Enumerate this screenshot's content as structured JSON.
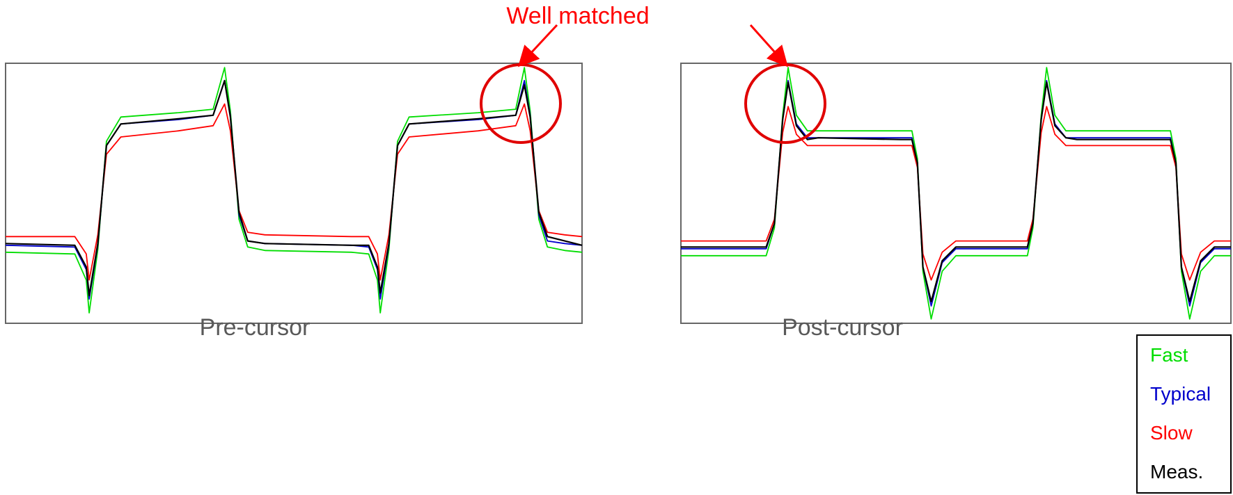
{
  "annotation": {
    "text": "Well matched",
    "color": "#ff0000"
  },
  "captions": {
    "left": "Pre-cursor",
    "right": "Post-cursor"
  },
  "legend": [
    {
      "label": "Fast",
      "color": "#00dd00"
    },
    {
      "label": "Typical",
      "color": "#0000cc"
    },
    {
      "label": "Slow",
      "color": "#ff0000"
    },
    {
      "label": "Meas.",
      "color": "#000000"
    }
  ],
  "chart_data": [
    {
      "type": "line",
      "title": "Pre-cursor",
      "x_range": [
        0,
        1
      ],
      "y_range": [
        -1.5,
        1.5
      ],
      "grid": false,
      "legend_placement": "bottom-right",
      "x": [
        0.0,
        0.12,
        0.14,
        0.145,
        0.16,
        0.175,
        0.2,
        0.3,
        0.36,
        0.38,
        0.39,
        0.405,
        0.42,
        0.45,
        0.6,
        0.63,
        0.645,
        0.65,
        0.665,
        0.68,
        0.7,
        0.82,
        0.885,
        0.9,
        0.91,
        0.925,
        0.94,
        0.97,
        1.0
      ],
      "series": [
        {
          "name": "Fast",
          "values": [
            -0.68,
            -0.7,
            -1.0,
            -1.38,
            -0.65,
            0.6,
            0.88,
            0.93,
            0.97,
            1.45,
            0.95,
            -0.3,
            -0.62,
            -0.66,
            -0.68,
            -0.7,
            -1.0,
            -1.38,
            -0.65,
            0.6,
            0.88,
            0.93,
            0.97,
            1.45,
            0.95,
            -0.3,
            -0.62,
            -0.66,
            -0.68
          ]
        },
        {
          "name": "Typical",
          "values": [
            -0.6,
            -0.62,
            -0.88,
            -1.22,
            -0.6,
            0.55,
            0.8,
            0.85,
            0.9,
            1.3,
            0.9,
            -0.25,
            -0.55,
            -0.58,
            -0.6,
            -0.62,
            -0.88,
            -1.22,
            -0.6,
            0.55,
            0.8,
            0.85,
            0.9,
            1.3,
            0.9,
            -0.25,
            -0.55,
            -0.58,
            -0.6
          ]
        },
        {
          "name": "Slow",
          "values": [
            -0.5,
            -0.5,
            -0.7,
            -1.0,
            -0.48,
            0.45,
            0.65,
            0.72,
            0.78,
            1.03,
            0.72,
            -0.2,
            -0.45,
            -0.48,
            -0.5,
            -0.5,
            -0.7,
            -1.0,
            -0.48,
            0.45,
            0.65,
            0.72,
            0.78,
            1.03,
            0.72,
            -0.2,
            -0.45,
            -0.48,
            -0.5
          ]
        },
        {
          "name": "Meas.",
          "values": [
            -0.58,
            -0.6,
            -0.85,
            -1.18,
            -0.58,
            0.55,
            0.8,
            0.86,
            0.9,
            1.3,
            0.88,
            -0.22,
            -0.55,
            -0.58,
            -0.6,
            -0.6,
            -0.85,
            -1.15,
            -0.58,
            0.55,
            0.8,
            0.86,
            0.9,
            1.25,
            0.88,
            -0.22,
            -0.5,
            -0.55,
            -0.6
          ]
        }
      ]
    },
    {
      "type": "line",
      "title": "Post-cursor",
      "x_range": [
        0,
        1
      ],
      "y_range": [
        -1.5,
        1.5
      ],
      "grid": false,
      "legend_placement": "bottom-right",
      "x": [
        0.0,
        0.155,
        0.17,
        0.185,
        0.195,
        0.21,
        0.23,
        0.25,
        0.4,
        0.42,
        0.43,
        0.44,
        0.455,
        0.475,
        0.5,
        0.63,
        0.64,
        0.655,
        0.665,
        0.68,
        0.7,
        0.72,
        0.87,
        0.89,
        0.9,
        0.91,
        0.925,
        0.945,
        0.97,
        1.0
      ],
      "series": [
        {
          "name": "Fast",
          "values": [
            -0.72,
            -0.72,
            -0.4,
            0.9,
            1.45,
            0.9,
            0.72,
            0.72,
            0.72,
            0.72,
            0.4,
            -0.9,
            -1.45,
            -0.9,
            -0.72,
            -0.72,
            -0.4,
            0.9,
            1.45,
            0.9,
            0.72,
            0.72,
            0.72,
            0.72,
            0.4,
            -0.9,
            -1.45,
            -0.9,
            -0.72,
            -0.72
          ]
        },
        {
          "name": "Typical",
          "values": [
            -0.64,
            -0.64,
            -0.35,
            0.85,
            1.3,
            0.8,
            0.64,
            0.64,
            0.64,
            0.64,
            0.35,
            -0.85,
            -1.3,
            -0.8,
            -0.64,
            -0.64,
            -0.35,
            0.85,
            1.3,
            0.8,
            0.64,
            0.64,
            0.64,
            0.64,
            0.35,
            -0.85,
            -1.3,
            -0.8,
            -0.64,
            -0.64
          ]
        },
        {
          "name": "Slow",
          "values": [
            -0.55,
            -0.55,
            -0.3,
            0.7,
            1.0,
            0.68,
            0.55,
            0.55,
            0.55,
            0.55,
            0.3,
            -0.7,
            -1.0,
            -0.68,
            -0.55,
            -0.55,
            -0.3,
            0.7,
            1.0,
            0.68,
            0.55,
            0.55,
            0.55,
            0.55,
            0.3,
            -0.7,
            -1.0,
            -0.68,
            -0.55,
            -0.55
          ]
        },
        {
          "name": "Meas.",
          "values": [
            -0.62,
            -0.62,
            -0.35,
            0.85,
            1.28,
            0.78,
            0.62,
            0.64,
            0.62,
            0.62,
            0.35,
            -0.85,
            -1.25,
            -0.78,
            -0.62,
            -0.62,
            -0.35,
            0.85,
            1.28,
            0.78,
            0.64,
            0.62,
            0.62,
            0.62,
            0.35,
            -0.85,
            -1.25,
            -0.78,
            -0.62,
            -0.62
          ]
        }
      ]
    }
  ]
}
